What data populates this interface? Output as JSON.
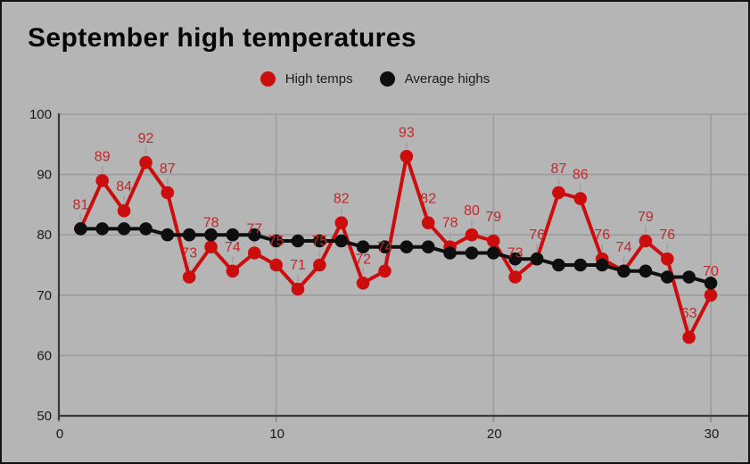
{
  "title": "September high temperatures",
  "legend": [
    {
      "label": "High temps",
      "color": "#cc0d0d"
    },
    {
      "label": "Average highs",
      "color": "#0e0e0e"
    }
  ],
  "colors": {
    "background": "#b5b5b6",
    "border": "#141414",
    "grid": "#9c9c9c",
    "axis": "#3a3a3a",
    "tick_text": "#191919",
    "leader_line": "#a2a2a2",
    "high_temps": "#cc0d0d",
    "high_temps_label": "#c62626",
    "average_highs": "#0e0e0e"
  },
  "chart_data": {
    "type": "line",
    "title": "September high temperatures",
    "xlabel": "",
    "ylabel": "",
    "x": [
      1,
      2,
      3,
      4,
      5,
      6,
      7,
      8,
      9,
      10,
      11,
      12,
      13,
      14,
      15,
      16,
      17,
      18,
      19,
      20,
      21,
      22,
      23,
      24,
      25,
      26,
      27,
      28,
      29,
      30
    ],
    "series": [
      {
        "name": "High temps",
        "color": "#cc0d0d",
        "label_color": "#c62626",
        "point_labels_visible": true,
        "values": [
          81,
          89,
          84,
          92,
          87,
          73,
          78,
          74,
          77,
          75,
          71,
          75,
          82,
          72,
          74,
          93,
          82,
          78,
          80,
          79,
          73,
          76,
          87,
          86,
          76,
          74,
          79,
          76,
          63,
          70
        ]
      },
      {
        "name": "Average highs",
        "color": "#0e0e0e",
        "label_color": null,
        "point_labels_visible": false,
        "values": [
          81,
          81,
          81,
          81,
          80,
          80,
          80,
          80,
          80,
          79,
          79,
          79,
          79,
          78,
          78,
          78,
          78,
          77,
          77,
          77,
          76,
          76,
          75,
          75,
          75,
          74,
          74,
          73,
          73,
          72
        ]
      }
    ],
    "x_ticks": [
      0,
      10,
      20,
      30
    ],
    "y_ticks": [
      50,
      60,
      70,
      80,
      90,
      100
    ],
    "xlim": [
      0,
      30.9
    ],
    "ylim": [
      50,
      100
    ],
    "grid": true,
    "legend_position": "top-center"
  }
}
